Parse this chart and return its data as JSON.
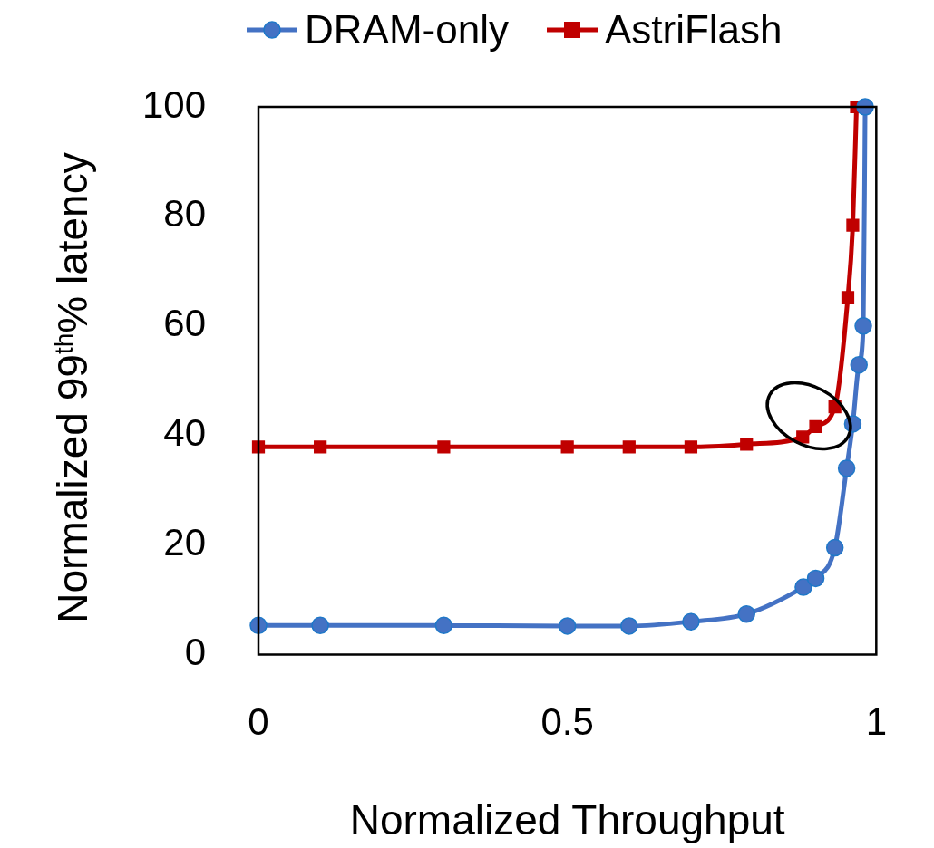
{
  "chart_data": {
    "type": "line",
    "xlabel": "Normalized Throughput",
    "ylabel": "Normalized 99$^{th}$% latency",
    "xlim": [
      0,
      1
    ],
    "xticks": [
      0,
      0.5,
      1
    ],
    "ylim": [
      0,
      100
    ],
    "yticks": [
      0,
      20,
      40,
      60,
      80,
      100
    ],
    "grid": false,
    "legend": "top",
    "line_style": "solid",
    "series": [
      {
        "name": "DRAM-only",
        "color": "#4472c4",
        "marker": "circle",
        "x": [
          0,
          0.1,
          0.3,
          0.5,
          0.6,
          0.7,
          0.79,
          0.882,
          0.902,
          0.933,
          0.952,
          0.962,
          0.972,
          0.979,
          0.982
        ],
        "values": [
          5.3,
          5.3,
          5.3,
          5.2,
          5.2,
          6.0,
          7.4,
          12.3,
          13.9,
          19.5,
          34.0,
          42.1,
          52.9,
          60,
          100
        ]
      },
      {
        "name": "AstriFlash",
        "color": "#c00000",
        "marker": "square",
        "x": [
          0,
          0.1,
          0.3,
          0.5,
          0.6,
          0.7,
          0.79,
          0.881,
          0.902,
          0.933,
          0.954,
          0.962,
          0.968
        ],
        "values": [
          37.9,
          37.9,
          37.9,
          37.9,
          37.9,
          37.9,
          38.4,
          39.7,
          41.6,
          45.2,
          65.2,
          78.4,
          100
        ]
      }
    ]
  }
}
